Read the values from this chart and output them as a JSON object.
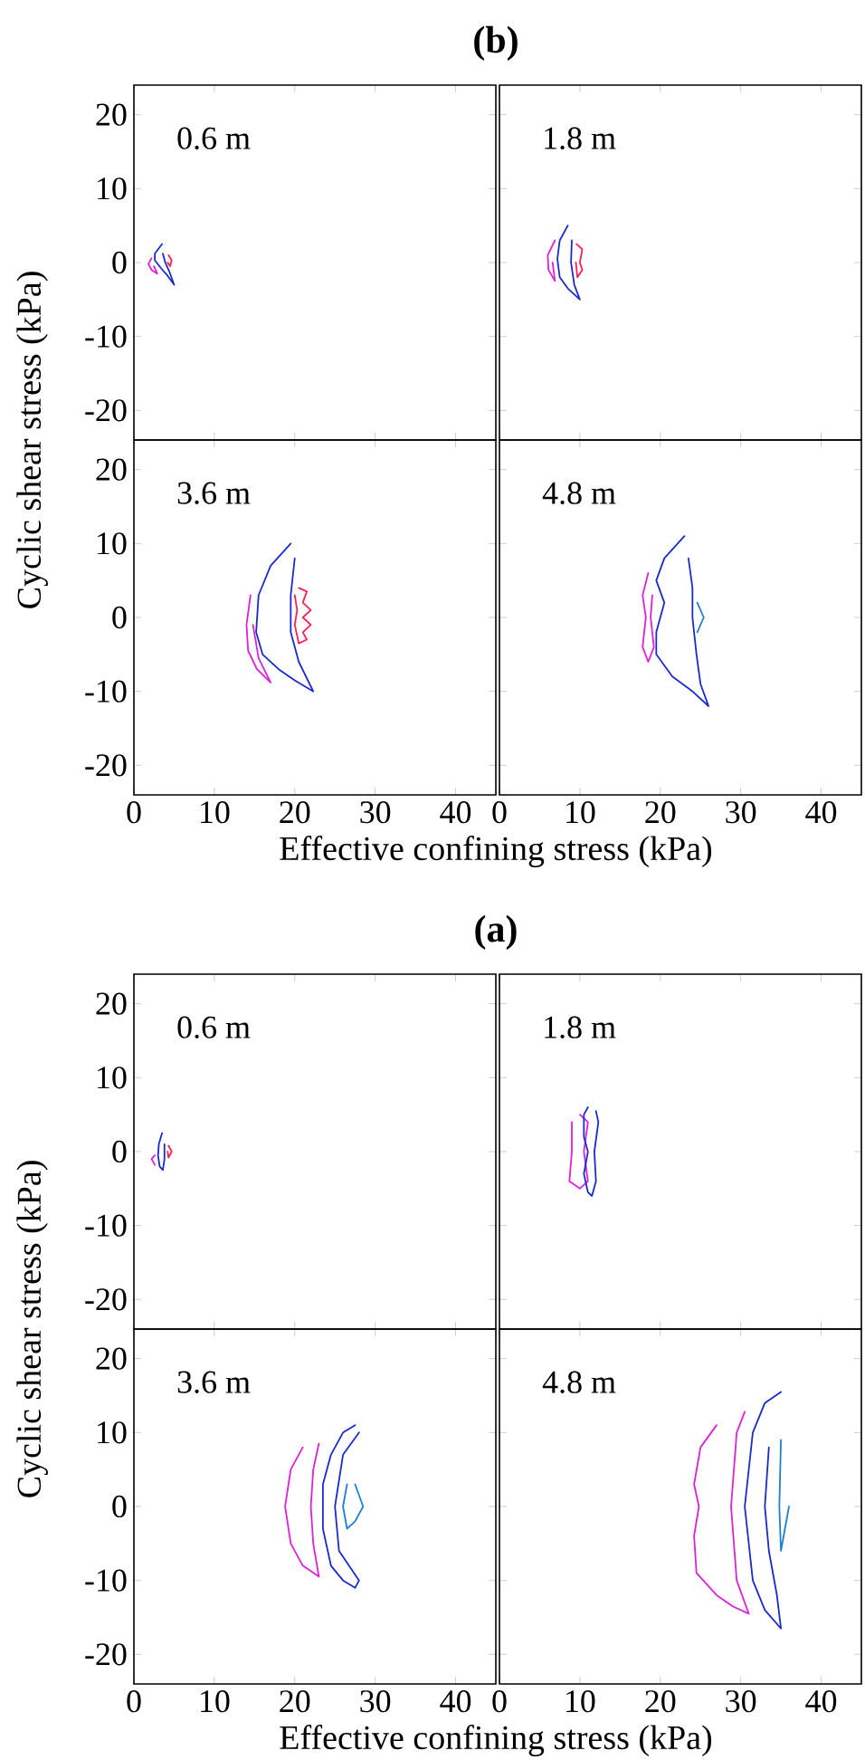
{
  "chart_data": [
    {
      "type": "line",
      "title": "(b)",
      "xlim": [
        0,
        45
      ],
      "ylim": [
        -24,
        24
      ],
      "xticks": [
        0,
        10,
        20,
        30,
        40
      ],
      "yticks": [
        -20,
        -10,
        0,
        10,
        20
      ],
      "tick_labels": "y",
      "annotations": [
        "0.6 m"
      ],
      "series": [
        {
          "color": "#e020d8",
          "x": [
            2.2,
            1.8,
            2.2,
            2.9,
            2.5
          ],
          "values": [
            0.6,
            -0.2,
            -1,
            -1.5,
            -0.5
          ]
        },
        {
          "color": "#ff2050",
          "x": [
            4.3,
            4.7,
            4.5,
            4.2
          ],
          "values": [
            1,
            0.3,
            -0.5,
            0
          ]
        },
        {
          "color": "#1a2ad0",
          "x": [
            3.5,
            2.6,
            2.6,
            3.4,
            4.2,
            5,
            4.4,
            3.9,
            3.6
          ],
          "values": [
            2.5,
            1.2,
            0.3,
            -0.8,
            -1.8,
            -3,
            -1.2,
            0,
            1.2
          ]
        }
      ]
    },
    {
      "type": "line",
      "xlim": [
        0,
        45
      ],
      "ylim": [
        -24,
        24
      ],
      "xticks": [
        0,
        10,
        20,
        30,
        40
      ],
      "yticks": [
        -20,
        -10,
        0,
        10,
        20
      ],
      "tick_labels": false,
      "annotations": [
        "1.8 m"
      ],
      "series": [
        {
          "color": "#e020d8",
          "x": [
            6.9,
            6,
            6.1,
            6.9,
            6.6
          ],
          "values": [
            3,
            1,
            -1,
            -2.5,
            0
          ]
        },
        {
          "color": "#ff2050",
          "x": [
            9.6,
            10.3,
            10,
            10.3,
            9.7,
            9.5
          ],
          "values": [
            2.5,
            1.8,
            0,
            -1,
            -2,
            0
          ]
        },
        {
          "color": "#1a2ad0",
          "x": [
            8.5,
            7.5,
            7.2,
            7.5,
            8.5,
            10,
            9.3,
            8.9,
            9
          ],
          "values": [
            5,
            3,
            0.5,
            -2,
            -3.5,
            -5,
            -3,
            0,
            3
          ]
        }
      ]
    },
    {
      "type": "line",
      "xlabel": "Effective confining stress (kPa)",
      "ylabel": "Cyclic shear stress (kPa)",
      "xlim": [
        0,
        45
      ],
      "ylim": [
        -24,
        24
      ],
      "xticks": [
        0,
        10,
        20,
        30,
        40
      ],
      "yticks": [
        -20,
        -10,
        0,
        10,
        20
      ],
      "annotations": [
        "3.6 m"
      ],
      "series": [
        {
          "color": "#e020d8",
          "x": [
            14.5,
            14,
            14.2,
            15.3,
            17,
            15.5,
            14.8
          ],
          "values": [
            3,
            -1,
            -4.5,
            -7,
            -8.8,
            -5.5,
            -1
          ]
        },
        {
          "color": "#ff2050",
          "x": [
            20.5,
            21.5,
            21,
            22,
            21,
            22,
            21,
            21.5,
            20.5,
            20,
            20.3,
            20
          ],
          "values": [
            4,
            3.5,
            2,
            1,
            0,
            -1,
            -2,
            -3,
            -3.5,
            -1,
            1,
            3
          ]
        },
        {
          "color": "#1a2ad0",
          "x": [
            19.5,
            17,
            15.5,
            15.2,
            16,
            18,
            20,
            22.3,
            20.5,
            19.5,
            19.5,
            20
          ],
          "values": [
            10,
            7,
            3,
            -2,
            -5,
            -7,
            -8.5,
            -10,
            -6,
            -2,
            3,
            8
          ]
        }
      ]
    },
    {
      "type": "line",
      "xlim": [
        0,
        45
      ],
      "ylim": [
        -24,
        24
      ],
      "xticks": [
        0,
        10,
        20,
        30,
        40
      ],
      "yticks": [
        -20,
        -10,
        0,
        10,
        20
      ],
      "tick_labels": "x",
      "annotations": [
        "4.8 m"
      ],
      "series": [
        {
          "color": "#e020d8",
          "x": [
            18.5,
            17.8,
            18.2,
            17.8,
            18.5,
            19.2,
            18.8,
            19
          ],
          "values": [
            6,
            3,
            0,
            -4,
            -6,
            -4,
            0,
            3
          ]
        },
        {
          "color": "#1a2ad0",
          "x": [
            23,
            20.5,
            19.5,
            20.5,
            19.5,
            19.5,
            21.5,
            24,
            26,
            25,
            24.5,
            24,
            24,
            23.5
          ],
          "values": [
            11,
            8,
            5,
            2,
            -2,
            -5,
            -8,
            -10,
            -12,
            -9,
            -5,
            0,
            4,
            8
          ]
        },
        {
          "color": "#2080d0",
          "x": [
            24.6,
            25.4,
            24.6
          ],
          "values": [
            2,
            0,
            -2
          ]
        }
      ]
    },
    {
      "type": "line",
      "title": "(a)",
      "xlim": [
        0,
        45
      ],
      "ylim": [
        -24,
        24
      ],
      "xticks": [
        0,
        10,
        20,
        30,
        40
      ],
      "yticks": [
        -20,
        -10,
        0,
        10,
        20
      ],
      "tick_labels": "y",
      "annotations": [
        "0.6 m"
      ],
      "series": [
        {
          "color": "#e020d8",
          "x": [
            2.6,
            2.2,
            2.6
          ],
          "values": [
            -0.5,
            -1,
            -1.8
          ]
        },
        {
          "color": "#ff2050",
          "x": [
            4.3,
            4.7,
            4.3,
            4.2
          ],
          "values": [
            0.8,
            0,
            -0.8,
            0
          ]
        },
        {
          "color": "#1a2ad0",
          "x": [
            3.5,
            3.1,
            3,
            3.2,
            3.6,
            3.8,
            3.8
          ],
          "values": [
            2.5,
            1,
            -0.5,
            -2,
            -2.5,
            -1,
            1
          ]
        }
      ]
    },
    {
      "type": "line",
      "xlim": [
        0,
        45
      ],
      "ylim": [
        -24,
        24
      ],
      "xticks": [
        0,
        10,
        20,
        30,
        40
      ],
      "yticks": [
        -20,
        -10,
        0,
        10,
        20
      ],
      "tick_labels": false,
      "annotations": [
        "1.8 m"
      ],
      "series": [
        {
          "color": "#e020d8",
          "x": [
            9,
            9,
            8.7,
            10,
            11,
            10.5,
            11,
            10
          ],
          "values": [
            4,
            0,
            -4,
            -5,
            -4,
            0,
            4,
            5
          ]
        },
        {
          "color": "#1a2ad0",
          "x": [
            11,
            10.5,
            10.5,
            11,
            10.5,
            11,
            11.5,
            12,
            11.8,
            12.3,
            12
          ],
          "values": [
            6,
            5,
            2,
            0,
            -3,
            -5.5,
            -6,
            -4,
            0,
            4,
            5.5
          ]
        }
      ]
    },
    {
      "type": "line",
      "xlabel": "Effective confining stress (kPa)",
      "ylabel": "Cyclic shear stress (kPa)",
      "xlim": [
        0,
        45
      ],
      "ylim": [
        -24,
        24
      ],
      "xticks": [
        0,
        10,
        20,
        30,
        40
      ],
      "yticks": [
        -20,
        -10,
        0,
        10,
        20
      ],
      "annotations": [
        "3.6 m"
      ],
      "series": [
        {
          "color": "#e020d8",
          "x": [
            21,
            19.5,
            18.8,
            19.5,
            21,
            23,
            22.3,
            22,
            22.3,
            23
          ],
          "values": [
            8,
            5,
            0,
            -5,
            -8,
            -9.5,
            -5,
            0,
            5,
            8.5
          ]
        },
        {
          "color": "#1a2ad0",
          "x": [
            27.5,
            26,
            24.5,
            23.5,
            23.5,
            24.5,
            26,
            27.5,
            28,
            25.5,
            25,
            26,
            28
          ],
          "values": [
            11,
            10,
            7,
            3,
            -3,
            -8,
            -10,
            -11,
            -10,
            -6,
            0,
            7,
            10
          ]
        },
        {
          "color": "#2080d0",
          "x": [
            26.5,
            26,
            26.5,
            27.5,
            28.5,
            27.5
          ],
          "values": [
            3,
            0,
            -3,
            -2,
            0,
            3
          ]
        }
      ]
    },
    {
      "type": "line",
      "xlim": [
        0,
        45
      ],
      "ylim": [
        -24,
        24
      ],
      "xticks": [
        0,
        10,
        20,
        30,
        40
      ],
      "yticks": [
        -20,
        -10,
        0,
        10,
        20
      ],
      "tick_labels": "x",
      "annotations": [
        "4.8 m"
      ],
      "series": [
        {
          "color": "#e020d8",
          "x": [
            27,
            25,
            24.2,
            24.8,
            24.2,
            24.5,
            27,
            29,
            31,
            29.5,
            28.8,
            29.5,
            30.5
          ],
          "values": [
            11,
            8,
            3,
            0,
            -4,
            -9,
            -12,
            -13.5,
            -14.5,
            -10,
            0,
            10,
            12.8
          ]
        },
        {
          "color": "#1a2ad0",
          "x": [
            35,
            33,
            31.5,
            30.5,
            31.5,
            33,
            35,
            34.5,
            33.5,
            33,
            33.5
          ],
          "values": [
            15.5,
            14,
            10,
            0,
            -10,
            -14,
            -16.5,
            -12,
            -6,
            0,
            8
          ]
        },
        {
          "color": "#2080d0",
          "x": [
            35,
            34.8,
            35,
            36
          ],
          "values": [
            9,
            0,
            -6,
            0
          ]
        }
      ]
    }
  ]
}
